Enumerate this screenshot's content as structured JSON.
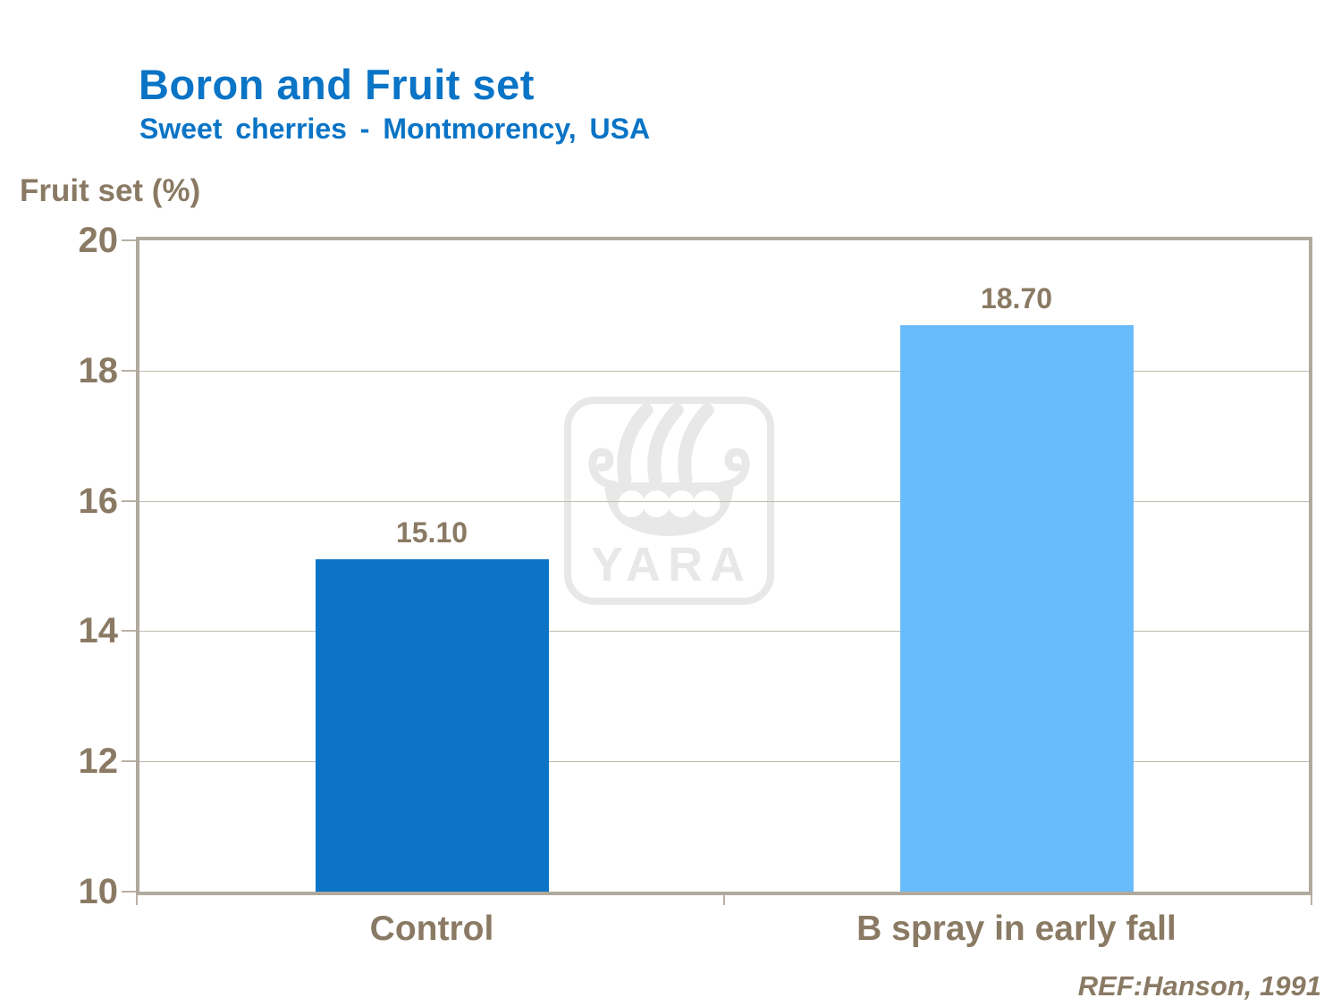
{
  "header": {
    "title": "Boron and Fruit set",
    "subtitle": "Sweet cherries - Montmorency, USA"
  },
  "chart_data": {
    "type": "bar",
    "title": "Boron and Fruit set",
    "subtitle": "Sweet cherries - Montmorency, USA",
    "ylabel": "Fruit set (%)",
    "xlabel": "",
    "categories": [
      "Control",
      "B spray in early fall"
    ],
    "values": [
      15.1,
      18.7
    ],
    "value_labels": [
      "15.10",
      "18.70"
    ],
    "bar_colors": [
      "#0B74C6",
      "#69BCFB"
    ],
    "ylim": [
      10,
      20
    ],
    "yticks": [
      10,
      12,
      14,
      16,
      18,
      20
    ],
    "grid": true,
    "legend": "none"
  },
  "footer": {
    "reference": "REF:Hanson, 1991"
  },
  "watermark": {
    "name": "yara-logo",
    "text": "YARA",
    "color": "#E8E8E8"
  },
  "colors": {
    "title_blue": "#0A74C6",
    "text_taupe": "#8A7A64",
    "axis_border": "#B1A99D",
    "tick": "#B9B1A5",
    "gridline": "#C2BAAD"
  }
}
